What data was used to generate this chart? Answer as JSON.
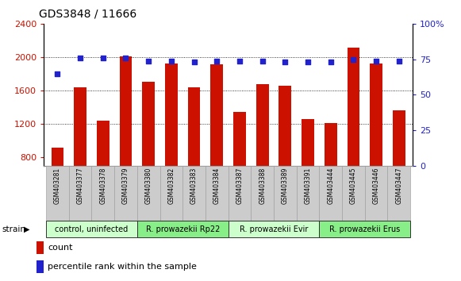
{
  "title": "GDS3848 / 11666",
  "samples": [
    "GSM403281",
    "GSM403377",
    "GSM403378",
    "GSM403379",
    "GSM403380",
    "GSM403382",
    "GSM403383",
    "GSM403384",
    "GSM403387",
    "GSM403388",
    "GSM403389",
    "GSM403391",
    "GSM403444",
    "GSM403445",
    "GSM403446",
    "GSM403447"
  ],
  "counts": [
    920,
    1640,
    1240,
    2010,
    1710,
    1930,
    1640,
    1920,
    1350,
    1680,
    1660,
    1260,
    1210,
    2120,
    1930,
    1360
  ],
  "percentiles": [
    65,
    76,
    76,
    76,
    74,
    74,
    73,
    74,
    74,
    74,
    73,
    73,
    73,
    75,
    74,
    74
  ],
  "bar_color": "#cc1100",
  "dot_color": "#2222cc",
  "ylim_left": [
    700,
    2400
  ],
  "ylim_right": [
    0,
    100
  ],
  "yticks_left": [
    800,
    1200,
    1600,
    2000,
    2400
  ],
  "yticks_right": [
    0,
    25,
    50,
    75,
    100
  ],
  "yticklabels_right": [
    "0",
    "25",
    "50",
    "75",
    "100%"
  ],
  "grid_values": [
    1200,
    1600,
    2000
  ],
  "groups": [
    {
      "label": "control, uninfected",
      "start": 0,
      "end": 3,
      "color": "#ccffcc"
    },
    {
      "label": "R. prowazekii Rp22",
      "start": 4,
      "end": 7,
      "color": "#88ee88"
    },
    {
      "label": "R. prowazekii Evir",
      "start": 8,
      "end": 11,
      "color": "#ccffcc"
    },
    {
      "label": "R. prowazekii Erus",
      "start": 12,
      "end": 15,
      "color": "#88ee88"
    }
  ],
  "legend_count_color": "#cc1100",
  "legend_pct_color": "#2222cc",
  "tick_label_bg": "#cccccc",
  "legend_count_label": "count",
  "legend_pct_label": "percentile rank within the sample",
  "title_fontsize": 10,
  "bar_width": 0.55
}
